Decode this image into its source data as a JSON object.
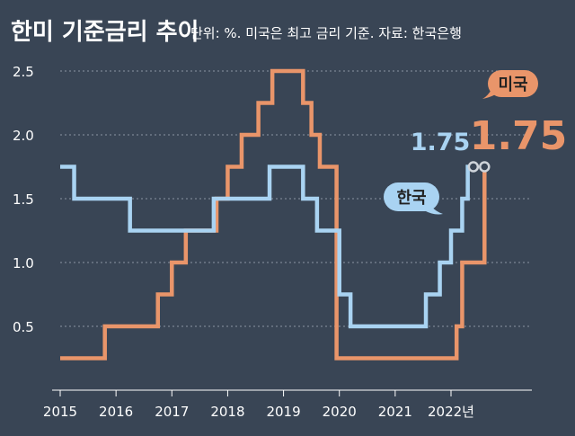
{
  "title": "한미 기준금리 추이",
  "subtitle": "단위: %. 미국은 최고 금리 기준. 자료: 한국은행",
  "chart_data": {
    "type": "line",
    "step": true,
    "x_ticks": [
      "2015",
      "2016",
      "2017",
      "2018",
      "2019",
      "2020",
      "2021",
      "2022년"
    ],
    "y_ticks": [
      "0.5",
      "1.0",
      "1.5",
      "2.0",
      "2.5"
    ],
    "xlim": [
      2015,
      2023.3
    ],
    "ylim": [
      0,
      2.5
    ],
    "grid": true,
    "series": [
      {
        "name": "미국",
        "color": "#E9956A",
        "end_label": "1.75",
        "points": [
          [
            2015.0,
            0.25
          ],
          [
            2015.8,
            0.5
          ],
          [
            2016.75,
            0.75
          ],
          [
            2017.0,
            1.0
          ],
          [
            2017.25,
            1.25
          ],
          [
            2017.8,
            1.5
          ],
          [
            2018.0,
            1.75
          ],
          [
            2018.25,
            2.0
          ],
          [
            2018.55,
            2.25
          ],
          [
            2018.8,
            2.5
          ],
          [
            2019.35,
            2.25
          ],
          [
            2019.5,
            2.0
          ],
          [
            2019.65,
            1.75
          ],
          [
            2019.95,
            0.25
          ],
          [
            2022.1,
            0.5
          ],
          [
            2022.2,
            1.0
          ],
          [
            2022.6,
            1.75
          ]
        ]
      },
      {
        "name": "한국",
        "color": "#A9D3F2",
        "end_label": "1.75",
        "points": [
          [
            2015.0,
            1.75
          ],
          [
            2015.25,
            1.5
          ],
          [
            2016.25,
            1.25
          ],
          [
            2017.75,
            1.5
          ],
          [
            2018.75,
            1.75
          ],
          [
            2019.35,
            1.5
          ],
          [
            2019.6,
            1.25
          ],
          [
            2020.0,
            0.75
          ],
          [
            2020.2,
            0.5
          ],
          [
            2021.55,
            0.75
          ],
          [
            2021.8,
            1.0
          ],
          [
            2022.0,
            1.25
          ],
          [
            2022.2,
            1.5
          ],
          [
            2022.3,
            1.75
          ],
          [
            2022.4,
            1.75
          ]
        ]
      }
    ]
  }
}
